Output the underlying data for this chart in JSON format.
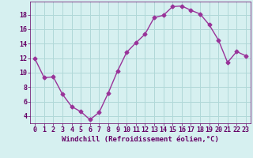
{
  "x": [
    0,
    1,
    2,
    3,
    4,
    5,
    6,
    7,
    8,
    9,
    10,
    11,
    12,
    13,
    14,
    15,
    16,
    17,
    18,
    19,
    20,
    21,
    22,
    23
  ],
  "y": [
    11.9,
    9.3,
    9.4,
    7.0,
    5.3,
    4.6,
    3.5,
    4.5,
    7.2,
    10.2,
    12.8,
    14.1,
    15.3,
    17.6,
    17.9,
    19.1,
    19.2,
    18.6,
    18.1,
    16.6,
    14.5,
    11.4,
    12.9,
    12.3
  ],
  "line_color": "#993399",
  "marker": "D",
  "markersize": 2.5,
  "linewidth": 1.0,
  "xlabel": "Windchill (Refroidissement éolien,°C)",
  "xlabel_fontsize": 7,
  "xtick_labels": [
    "0",
    "1",
    "2",
    "3",
    "4",
    "5",
    "6",
    "7",
    "8",
    "9",
    "10",
    "11",
    "12",
    "13",
    "14",
    "15",
    "16",
    "17",
    "18",
    "19",
    "20",
    "21",
    "22",
    "23"
  ],
  "ytick_values": [
    4,
    6,
    8,
    10,
    12,
    14,
    16,
    18
  ],
  "ylim": [
    3.0,
    19.8
  ],
  "xlim": [
    -0.5,
    23.5
  ],
  "bg_color": "#d6f0f0",
  "grid_color": "#b0d8d8",
  "tick_color": "#660066",
  "tick_fontsize": 6,
  "xlabel_fontsize_val": 6.5
}
